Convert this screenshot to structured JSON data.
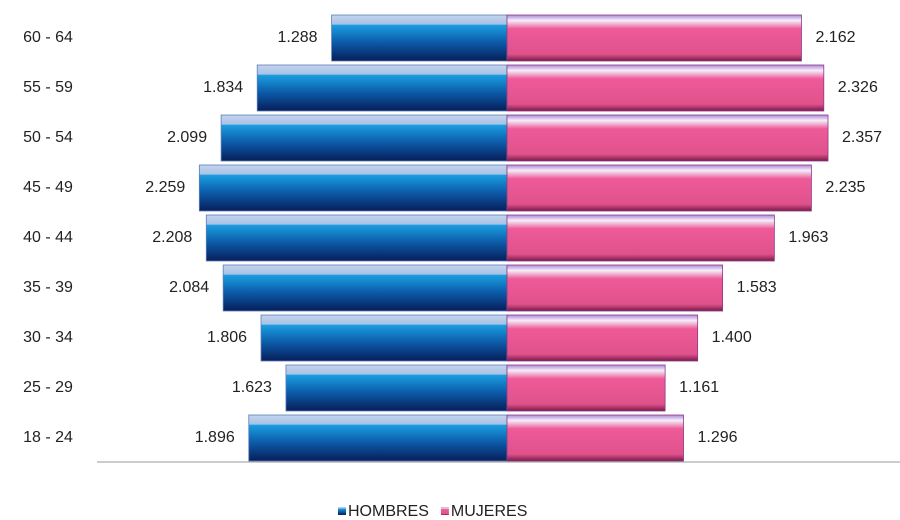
{
  "chart_data": {
    "type": "pyramid",
    "categories": [
      "60 - 64",
      "55 - 59",
      "50 - 54",
      "45 - 49",
      "40 - 44",
      "35 - 39",
      "30 - 34",
      "25 - 29",
      "18 - 24"
    ],
    "series": [
      {
        "name": "HOMBRES",
        "color": "#1a9ee0",
        "values": [
          1288,
          1834,
          2099,
          2259,
          2208,
          2084,
          1806,
          1623,
          1896
        ],
        "value_labels": [
          "1.288",
          "1.834",
          "2.099",
          "2.259",
          "2.208",
          "2.084",
          "1.806",
          "1.623",
          "1.896"
        ]
      },
      {
        "name": "MUJERES",
        "color": "#ee5a98",
        "values": [
          2162,
          2326,
          2357,
          2235,
          1963,
          1583,
          1400,
          1161,
          1296
        ],
        "value_labels": [
          "2.162",
          "2.326",
          "2.357",
          "2.235",
          "1.963",
          "1.583",
          "1.400",
          "1.161",
          "1.296"
        ]
      }
    ],
    "legend": "bottom"
  }
}
